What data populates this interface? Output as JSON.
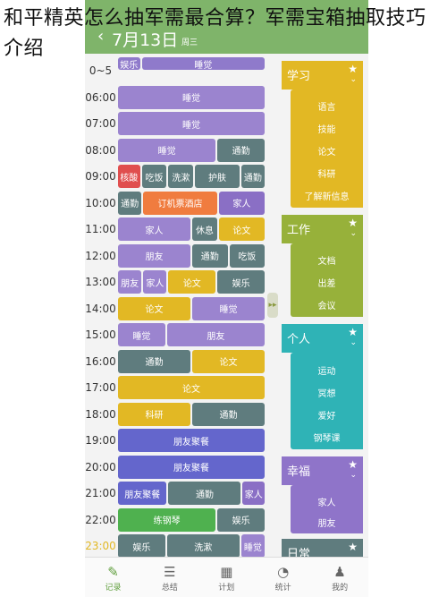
{
  "overlay_title": "和平精英怎么抽军需最合算？军需宝箱抽取技巧介绍",
  "header": {
    "date": "7月13日",
    "weekday": "周三"
  },
  "times": [
    "0~5",
    "06:00",
    "07:00",
    "08:00",
    "09:00",
    "10:00",
    "11:00",
    "12:00",
    "13:00",
    "14:00",
    "15:00",
    "16:00",
    "17:00",
    "18:00",
    "19:00",
    "20:00",
    "21:00",
    "22:00",
    "23:00"
  ],
  "rows": [
    [
      {
        "t": "娱乐",
        "c": "header"
      },
      {
        "t": "睡觉",
        "c": "header"
      }
    ],
    [
      {
        "t": "睡觉",
        "c": "purple"
      }
    ],
    [
      {
        "t": "睡觉",
        "c": "purple"
      }
    ],
    [
      {
        "t": "睡觉",
        "c": "purple"
      },
      {
        "t": "通勤",
        "c": "slate"
      }
    ],
    [
      {
        "t": "核酸",
        "c": "red"
      },
      {
        "t": "吃饭",
        "c": "slate"
      },
      {
        "t": "洗漱",
        "c": "slate"
      },
      {
        "t": "护肤",
        "c": "slate"
      },
      {
        "t": "通勤",
        "c": "slate"
      }
    ],
    [
      {
        "t": "通勤",
        "c": "slate"
      },
      {
        "t": "订机票酒店",
        "c": "orange"
      },
      {
        "t": "家人",
        "c": "lpurple"
      }
    ],
    [
      {
        "t": "家人",
        "c": "purple"
      },
      {
        "t": "休息",
        "c": "slate"
      },
      {
        "t": "论文",
        "c": "yellow"
      }
    ],
    [
      {
        "t": "朋友",
        "c": "purple"
      },
      {
        "t": "通勤",
        "c": "slate"
      },
      {
        "t": "吃饭",
        "c": "slate"
      }
    ],
    [
      {
        "t": "朋友",
        "c": "purple"
      },
      {
        "t": "家人",
        "c": "purple"
      },
      {
        "t": "论文",
        "c": "yellow"
      },
      {
        "t": "娱乐",
        "c": "slate"
      }
    ],
    [
      {
        "t": "论文",
        "c": "yellow"
      },
      {
        "t": "睡觉",
        "c": "purple"
      }
    ],
    [
      {
        "t": "睡觉",
        "c": "purple"
      },
      {
        "t": "朋友",
        "c": "purple"
      }
    ],
    [
      {
        "t": "通勤",
        "c": "slate"
      },
      {
        "t": "论文",
        "c": "yellow"
      }
    ],
    [
      {
        "t": "论文",
        "c": "yellow"
      }
    ],
    [
      {
        "t": "科研",
        "c": "yellow"
      },
      {
        "t": "通勤",
        "c": "slate"
      }
    ],
    [
      {
        "t": "朋友聚餐",
        "c": "blue"
      }
    ],
    [
      {
        "t": "朋友聚餐",
        "c": "blue"
      }
    ],
    [
      {
        "t": "朋友聚餐",
        "c": "blue"
      },
      {
        "t": "通勤",
        "c": "slate"
      },
      {
        "t": "家人",
        "c": "lpurple"
      }
    ],
    [
      {
        "t": "练钢琴",
        "c": "green"
      },
      {
        "t": "娱乐",
        "c": "slate"
      }
    ],
    [
      {
        "t": "娱乐",
        "c": "slate"
      },
      {
        "t": "洗漱",
        "c": "slate"
      },
      {
        "t": "睡觉",
        "c": "purple"
      }
    ]
  ],
  "categories": [
    {
      "title": "学习",
      "color": "#e2b824",
      "body": "#e2b824",
      "items": [
        "语言",
        "技能",
        "论文",
        "科研",
        "了解新信息"
      ]
    },
    {
      "title": "工作",
      "color": "#97b13a",
      "body": "#97b13a",
      "items": [
        "文档",
        "出差",
        "会议"
      ]
    },
    {
      "title": "个人",
      "color": "#2fb3b6",
      "body": "#2fb3b6",
      "items": [
        "运动",
        "冥想",
        "爱好",
        "钢琴课"
      ]
    },
    {
      "title": "幸福",
      "color": "#8f74c9",
      "body": "#8f74c9",
      "items": [
        "家人",
        "朋友"
      ]
    },
    {
      "title": "日常",
      "color": "#5f7c7e",
      "body": "#5f7c7e",
      "items": []
    }
  ],
  "nav": [
    {
      "label": "记录",
      "icon": "✎"
    },
    {
      "label": "总结",
      "icon": "☰"
    },
    {
      "label": "计划",
      "icon": "▦"
    },
    {
      "label": "统计",
      "icon": "◔"
    },
    {
      "label": "我的",
      "icon": "♟"
    }
  ]
}
